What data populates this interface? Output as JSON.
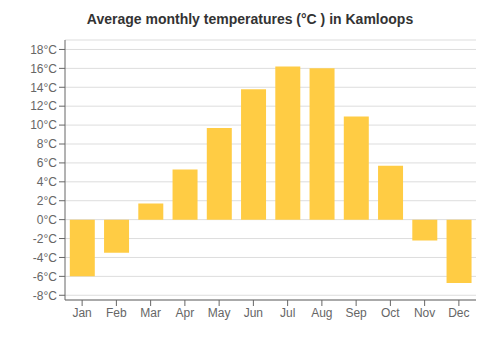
{
  "chart_data": {
    "type": "bar",
    "title": "Average monthly temperatures (°C ) in Kamloops",
    "categories": [
      "Jan",
      "Feb",
      "Mar",
      "Apr",
      "May",
      "Jun",
      "Jul",
      "Aug",
      "Sep",
      "Oct",
      "Nov",
      "Dec"
    ],
    "values": [
      -6.0,
      -3.5,
      1.7,
      5.3,
      9.7,
      13.8,
      16.2,
      16.0,
      10.9,
      5.7,
      -2.2,
      -6.7
    ],
    "color": "#FFCC44",
    "ylim": [
      -8.5,
      19.0
    ],
    "yticks": [
      {
        "value": -8,
        "label": "-8°C"
      },
      {
        "value": -6,
        "label": "-6°C"
      },
      {
        "value": -4,
        "label": "-4°C"
      },
      {
        "value": -2,
        "label": "-2°C"
      },
      {
        "value": 0,
        "label": "0°C"
      },
      {
        "value": 2,
        "label": "2°C"
      },
      {
        "value": 4,
        "label": "4°C"
      },
      {
        "value": 6,
        "label": "6°C"
      },
      {
        "value": 8,
        "label": "8°C"
      },
      {
        "value": 10,
        "label": "10°C"
      },
      {
        "value": 12,
        "label": "12°C"
      },
      {
        "value": 14,
        "label": "14°C"
      },
      {
        "value": 16,
        "label": "16°C"
      },
      {
        "value": 18,
        "label": "18°C"
      }
    ],
    "grid": true
  }
}
